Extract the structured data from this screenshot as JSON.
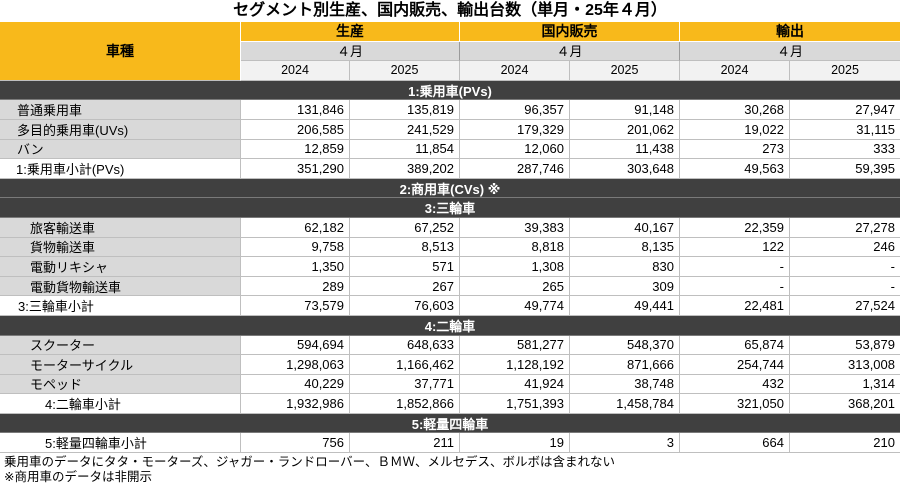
{
  "colors": {
    "header_accent": "#F8B91B",
    "section_bar": "#404040",
    "label_cell": "#D9D9D9"
  },
  "chart_data": {
    "type": "table",
    "title": "セグメント別生産、国内販売、輸出台数（単月・25年４月）",
    "row_header": "車種",
    "column_groups": [
      {
        "name": "生産",
        "period": "４月",
        "columns": [
          "2024",
          "2025"
        ]
      },
      {
        "name": "国内販売",
        "period": "４月",
        "columns": [
          "2024",
          "2025"
        ]
      },
      {
        "name": "輸出",
        "period": "４月",
        "columns": [
          "2024",
          "2025"
        ]
      }
    ],
    "rows": [
      {
        "kind": "section",
        "label": "1:乗用車(PVs)"
      },
      {
        "kind": "item",
        "label": "普通乗用車",
        "values": [
          "131,846",
          "135,819",
          "96,357",
          "91,148",
          "30,268",
          "27,947"
        ]
      },
      {
        "kind": "item",
        "label": "多目的乗用車(UVs)",
        "values": [
          "206,585",
          "241,529",
          "179,329",
          "201,062",
          "19,022",
          "31,115"
        ]
      },
      {
        "kind": "item",
        "label": "バン",
        "values": [
          "12,859",
          "11,854",
          "12,060",
          "11,438",
          "273",
          "333"
        ]
      },
      {
        "kind": "subtotal",
        "label": "1:乗用車小計(PVs)",
        "values": [
          "351,290",
          "389,202",
          "287,746",
          "303,648",
          "49,563",
          "59,395"
        ]
      },
      {
        "kind": "section",
        "label": "2:商用車(CVs) ※"
      },
      {
        "kind": "section",
        "label": "3:三輪車"
      },
      {
        "kind": "item",
        "label": "旅客輸送車",
        "values": [
          "62,182",
          "67,252",
          "39,383",
          "40,167",
          "22,359",
          "27,278"
        ]
      },
      {
        "kind": "item",
        "label": "貨物輸送車",
        "values": [
          "9,758",
          "8,513",
          "8,818",
          "8,135",
          "122",
          "246"
        ]
      },
      {
        "kind": "item",
        "label": "電動リキシャ",
        "values": [
          "1,350",
          "571",
          "1,308",
          "830",
          "-",
          "-"
        ]
      },
      {
        "kind": "item",
        "label": "電動貨物輸送車",
        "values": [
          "289",
          "267",
          "265",
          "309",
          "-",
          "-"
        ]
      },
      {
        "kind": "subtotal",
        "label": "3:三輪車小計",
        "values": [
          "73,579",
          "76,603",
          "49,774",
          "49,441",
          "22,481",
          "27,524"
        ]
      },
      {
        "kind": "section",
        "label": "4:二輪車"
      },
      {
        "kind": "item",
        "label": "スクーター",
        "values": [
          "594,694",
          "648,633",
          "581,277",
          "548,370",
          "65,874",
          "53,879"
        ]
      },
      {
        "kind": "item",
        "label": "モーターサイクル",
        "values": [
          "1,298,063",
          "1,166,462",
          "1,128,192",
          "871,666",
          "254,744",
          "313,008"
        ]
      },
      {
        "kind": "item",
        "label": "モペッド",
        "values": [
          "40,229",
          "37,771",
          "41,924",
          "38,748",
          "432",
          "1,314"
        ]
      },
      {
        "kind": "subtotal",
        "label": "4:二輪車小計",
        "values": [
          "1,932,986",
          "1,852,866",
          "1,751,393",
          "1,458,784",
          "321,050",
          "368,201"
        ]
      },
      {
        "kind": "section",
        "label": "5:軽量四輪車"
      },
      {
        "kind": "subtotal",
        "label": "5:軽量四輪車小計",
        "values": [
          "756",
          "211",
          "19",
          "3",
          "664",
          "210"
        ]
      }
    ],
    "notes": [
      "乗用車のデータにタタ・モーターズ、ジャガー・ランドローバー、ＢＭＷ、メルセデス、ボルボは含まれない",
      "※商用車のデータは非開示"
    ]
  }
}
